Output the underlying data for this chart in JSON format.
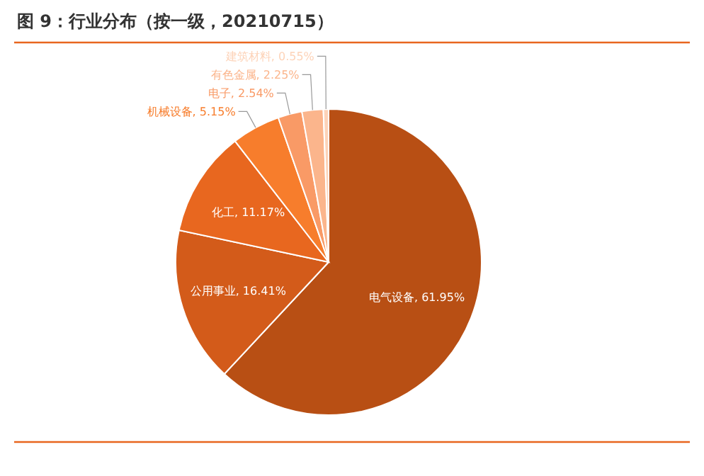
{
  "chart_data": {
    "type": "pie",
    "title": "图 9：行业分布（按一级，20210715）",
    "categories": [
      "电气设备",
      "公用事业",
      "化工",
      "机械设备",
      "电子",
      "有色金属",
      "建筑材料"
    ],
    "values": [
      61.95,
      16.41,
      11.17,
      5.15,
      2.54,
      2.25,
      0.55
    ],
    "colors": [
      "#b84f14",
      "#d35b1a",
      "#e8671f",
      "#f77d2c",
      "#f99a66",
      "#fbb58c",
      "#fdd3b8"
    ],
    "value_labels": [
      ", 61.95%",
      ", 16.41%",
      ", 11.17%",
      ", 5.15%",
      ", 2.54%",
      ", 2.25%",
      ", 0.55%"
    ]
  }
}
